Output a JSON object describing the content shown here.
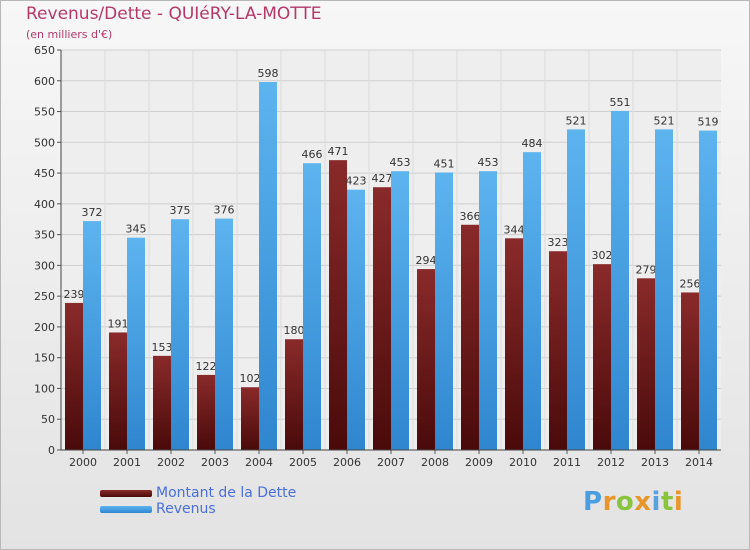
{
  "chart_data": {
    "type": "bar",
    "title": "Revenus/Dette - QUIéRY-LA-MOTTE",
    "subtitle": "(en milliers d'€)",
    "categories": [
      "2000",
      "2001",
      "2002",
      "2003",
      "2004",
      "2005",
      "2006",
      "2007",
      "2008",
      "2009",
      "2010",
      "2011",
      "2012",
      "2013",
      "2014"
    ],
    "series": [
      {
        "name": "Montant de la Dette",
        "color": "#7a1a1a",
        "values": [
          239,
          191,
          153,
          122,
          102,
          180,
          471,
          427,
          294,
          366,
          344,
          323,
          302,
          279,
          256
        ],
        "labels": [
          "239",
          "191",
          "153",
          "122",
          "102",
          "180",
          "471",
          "427",
          "294",
          "366",
          "344",
          "323",
          "302",
          "279",
          "256"
        ]
      },
      {
        "name": "Revenus",
        "color": "#4ca3e6",
        "values": [
          372,
          345,
          375,
          376,
          598,
          466,
          423,
          453,
          451,
          453,
          484,
          521,
          551,
          521,
          519
        ],
        "labels": [
          "372",
          "345",
          "375",
          "376",
          "598",
          "466",
          "423",
          "453",
          "451",
          "453",
          "484",
          "521",
          "551",
          "521",
          "519"
        ]
      }
    ],
    "yticks": [
      "0",
      "50",
      "100",
      "150",
      "200",
      "250",
      "300",
      "350",
      "400",
      "450",
      "500",
      "550",
      "600",
      "650"
    ],
    "ylim": [
      0,
      650
    ],
    "grid": true,
    "legend_position": "bottom-left"
  },
  "logo": {
    "text": "Proxiti",
    "letter_colors": [
      "#4a9de0",
      "#e8952a",
      "#88c43c",
      "#e8952a",
      "#5aa2df",
      "#88c43c",
      "#e8952a"
    ]
  }
}
